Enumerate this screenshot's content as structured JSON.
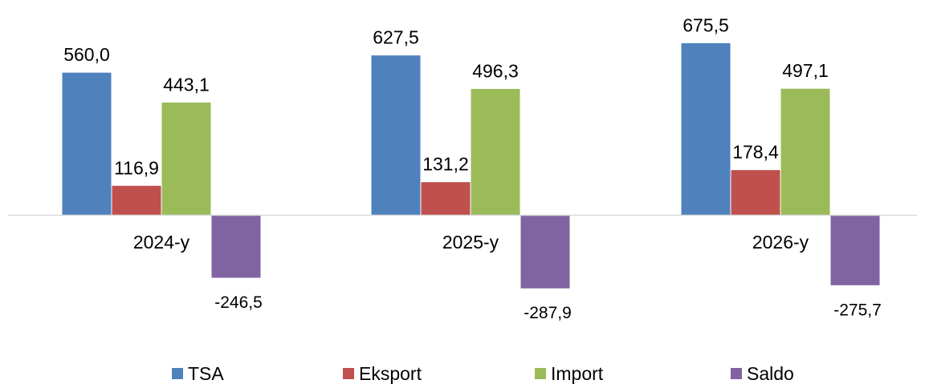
{
  "chart_data": {
    "type": "bar",
    "categories": [
      "2024-y",
      "2025-y",
      "2026-y"
    ],
    "series": [
      {
        "name": "TSA",
        "values": [
          560.0,
          627.5,
          675.5
        ],
        "labels": [
          "560,0",
          "627,5",
          "675,5"
        ],
        "color": "#4F81BD"
      },
      {
        "name": "Eksport",
        "values": [
          116.9,
          131.2,
          178.4
        ],
        "labels": [
          "116,9",
          "131,2",
          "178,4"
        ],
        "color": "#C0504D"
      },
      {
        "name": "Import",
        "values": [
          443.1,
          496.3,
          497.1
        ],
        "labels": [
          "443,1",
          "496,3",
          "497,1"
        ],
        "color": "#9BBB59"
      },
      {
        "name": "Saldo",
        "values": [
          -246.5,
          -287.9,
          -275.7
        ],
        "labels": [
          "-246,5",
          "-287,9",
          "-275,7"
        ],
        "color": "#8064A2"
      }
    ],
    "ylim": [
      -300,
      700
    ],
    "grid": false,
    "legend_position": "bottom"
  }
}
